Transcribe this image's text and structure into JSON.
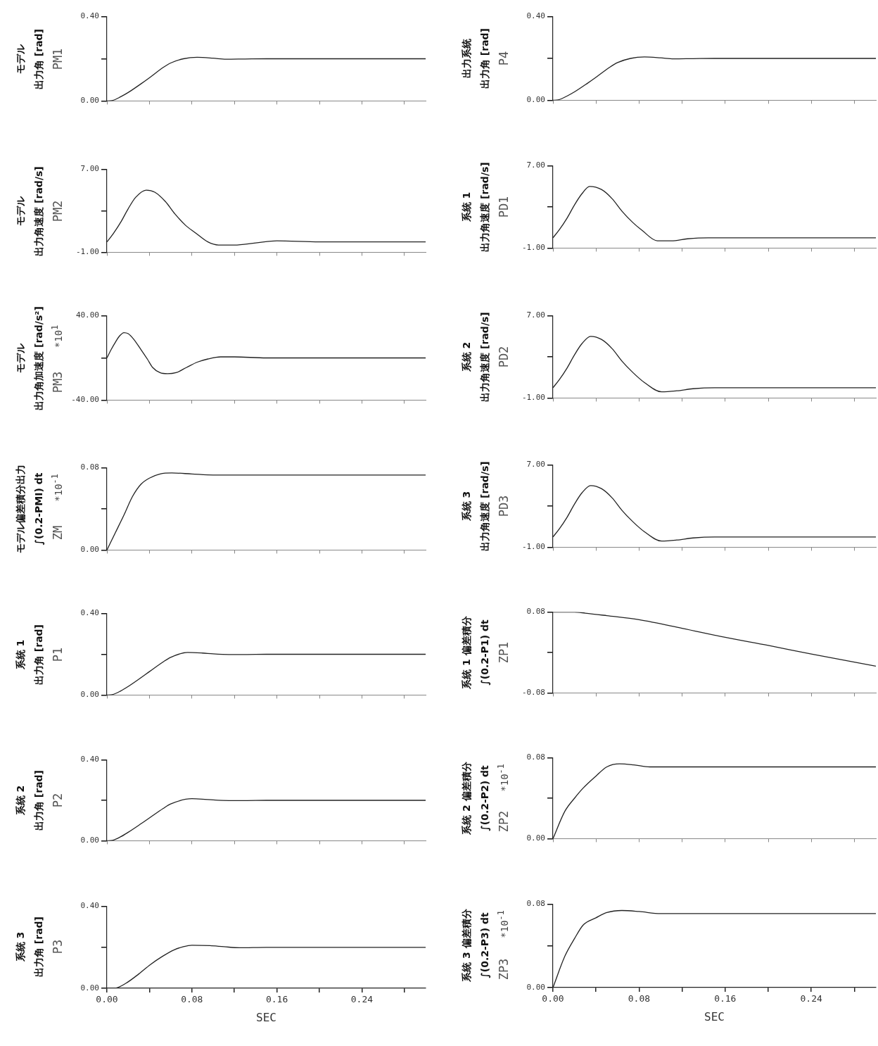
{
  "chart_data": [
    {
      "type": "line",
      "title": "モデル",
      "subtitle": "出力角 [rad]",
      "ylabel": "PM1",
      "color": "#222222",
      "marker": "none",
      "tick_labels": "y",
      "xlim": [
        0,
        0.3
      ],
      "xticks": [
        0,
        0.04,
        0.08,
        0.12,
        0.16,
        0.2,
        0.24,
        0.28
      ],
      "ylim": [
        0,
        0.4
      ],
      "yticks": [
        {
          "value": 0,
          "label": "0.00"
        },
        {
          "value": 0.2,
          "label": null
        },
        {
          "value": 0.4,
          "label": "0.40"
        }
      ],
      "x": [
        0,
        0.005,
        0.013,
        0.02,
        0.032,
        0.04,
        0.053,
        0.06,
        0.072,
        0.085,
        0.1,
        0.112,
        0.13,
        0.15,
        0.2,
        0.3
      ],
      "values": [
        0,
        0.002,
        0.02,
        0.04,
        0.081,
        0.11,
        0.159,
        0.18,
        0.2,
        0.207,
        0.203,
        0.198,
        0.199,
        0.2,
        0.2,
        0.2
      ]
    },
    {
      "type": "line",
      "title": "モデル",
      "subtitle": "出力角速度 [rad/s]",
      "ylabel": "PM2",
      "color": "#222222",
      "marker": "none",
      "tick_labels": "y",
      "xlim": [
        0,
        0.3
      ],
      "xticks": [
        0,
        0.04,
        0.08,
        0.12,
        0.16,
        0.2,
        0.24,
        0.28
      ],
      "ylim": [
        -1,
        7
      ],
      "yticks": [
        {
          "value": -1,
          "label": "-1.00"
        },
        {
          "value": 3,
          "label": null
        },
        {
          "value": 7,
          "label": "7.00"
        }
      ],
      "x": [
        0,
        0.006,
        0.013,
        0.02,
        0.027,
        0.037,
        0.045,
        0.055,
        0.064,
        0.074,
        0.083,
        0.095,
        0.105,
        0.12,
        0.14,
        0.16,
        0.2,
        0.3
      ],
      "values": [
        0,
        0.8,
        1.9,
        3.2,
        4.3,
        5.0,
        4.8,
        3.9,
        2.7,
        1.6,
        0.9,
        0.0,
        -0.3,
        -0.3,
        -0.1,
        0.1,
        0,
        0
      ]
    },
    {
      "type": "line",
      "title": "モデル",
      "subtitle": "出力角加速度 [rad/s²]",
      "ylabel": "PM3",
      "annotations": [
        "*10$^{1}$"
      ],
      "color": "#222222",
      "marker": "none",
      "tick_labels": "y",
      "xlim": [
        0,
        0.3
      ],
      "xticks": [
        0,
        0.04,
        0.08,
        0.12,
        0.16,
        0.2,
        0.24,
        0.28
      ],
      "ylim": [
        -40,
        40
      ],
      "yticks": [
        {
          "value": -40,
          "label": "-40.00"
        },
        {
          "value": 0,
          "label": null
        },
        {
          "value": 40,
          "label": "40.00"
        }
      ],
      "x": [
        0,
        0.004,
        0.008,
        0.012,
        0.016,
        0.02,
        0.025,
        0.032,
        0.038,
        0.043,
        0.05,
        0.057,
        0.065,
        0.075,
        0.085,
        0.095,
        0.107,
        0.12,
        0.15,
        0.2,
        0.3
      ],
      "values": [
        0,
        8,
        15,
        21,
        24,
        23,
        18,
        8,
        -1,
        -9,
        -14,
        -15,
        -14,
        -9,
        -4,
        -1,
        1,
        1,
        0,
        0,
        0
      ]
    },
    {
      "type": "line",
      "title": "モデル偏差積分出力",
      "subtitle": "∫(0.2-PMI) dt",
      "ylabel": "ZM",
      "annotations": [
        "*10$^{-1}$"
      ],
      "color": "#222222",
      "marker": "none",
      "tick_labels": "y",
      "xlim": [
        0,
        0.3
      ],
      "xticks": [
        0,
        0.04,
        0.08,
        0.12,
        0.16,
        0.2,
        0.24,
        0.28
      ],
      "ylim": [
        0,
        0.08
      ],
      "yticks": [
        {
          "value": 0,
          "label": "0.00"
        },
        {
          "value": 0.04,
          "label": null
        },
        {
          "value": 0.08,
          "label": "0.08"
        }
      ],
      "x": [
        0,
        0.008,
        0.016,
        0.024,
        0.032,
        0.04,
        0.05,
        0.061,
        0.08,
        0.1,
        0.15,
        0.3
      ],
      "values": [
        0,
        0.017,
        0.034,
        0.052,
        0.064,
        0.07,
        0.074,
        0.075,
        0.074,
        0.073,
        0.073,
        0.073
      ]
    },
    {
      "type": "line",
      "title": "系統 1",
      "subtitle": "出力角 [rad]",
      "ylabel": "P1",
      "color": "#222222",
      "marker": "none",
      "tick_labels": "y",
      "xlim": [
        0,
        0.3
      ],
      "xticks": [
        0,
        0.04,
        0.08,
        0.12,
        0.16,
        0.2,
        0.24,
        0.28
      ],
      "ylim": [
        0,
        0.4
      ],
      "yticks": [
        {
          "value": 0,
          "label": "0.00"
        },
        {
          "value": 0.2,
          "label": null
        },
        {
          "value": 0.4,
          "label": "0.40"
        }
      ],
      "x": [
        0,
        0.005,
        0.013,
        0.02,
        0.032,
        0.04,
        0.053,
        0.06,
        0.076,
        0.09,
        0.1,
        0.115,
        0.13,
        0.15,
        0.2,
        0.3
      ],
      "values": [
        0,
        0.002,
        0.02,
        0.042,
        0.085,
        0.115,
        0.163,
        0.185,
        0.209,
        0.206,
        0.202,
        0.199,
        0.199,
        0.2,
        0.2,
        0.2
      ]
    },
    {
      "type": "line",
      "title": "系統 2",
      "subtitle": "出力角 [rad]",
      "ylabel": "P2",
      "color": "#222222",
      "marker": "none",
      "tick_labels": "y",
      "xlim": [
        0,
        0.3
      ],
      "xticks": [
        0,
        0.04,
        0.08,
        0.12,
        0.16,
        0.2,
        0.24,
        0.28
      ],
      "ylim": [
        0,
        0.4
      ],
      "yticks": [
        {
          "value": 0,
          "label": "0.00"
        },
        {
          "value": 0.2,
          "label": null
        },
        {
          "value": 0.4,
          "label": "0.40"
        }
      ],
      "x": [
        0,
        0.005,
        0.013,
        0.02,
        0.032,
        0.04,
        0.053,
        0.06,
        0.08,
        0.09,
        0.1,
        0.115,
        0.13,
        0.15,
        0.2,
        0.3
      ],
      "values": [
        0,
        0.002,
        0.02,
        0.042,
        0.084,
        0.113,
        0.16,
        0.182,
        0.208,
        0.206,
        0.202,
        0.199,
        0.199,
        0.2,
        0.2,
        0.2
      ]
    },
    {
      "type": "line",
      "title": "系統 3",
      "subtitle": "出力角 [rad]",
      "ylabel": "P3",
      "xlabel": "SEC",
      "color": "#222222",
      "marker": "none",
      "xlim": [
        0,
        0.3
      ],
      "ylim": [
        0,
        0.4
      ],
      "yticks": [
        {
          "value": 0,
          "label": "0.00"
        },
        {
          "value": 0.2,
          "label": null
        },
        {
          "value": 0.4,
          "label": "0.40"
        }
      ],
      "xticks": [
        {
          "value": 0,
          "label": "0.00"
        },
        {
          "value": 0.04,
          "label": null
        },
        {
          "value": 0.08,
          "label": "0.08"
        },
        {
          "value": 0.12,
          "label": null
        },
        {
          "value": 0.16,
          "label": "0.16"
        },
        {
          "value": 0.2,
          "label": null
        },
        {
          "value": 0.24,
          "label": "0.24"
        },
        {
          "value": 0.28,
          "label": null
        }
      ],
      "x": [
        0,
        0.007,
        0.018,
        0.03,
        0.041,
        0.052,
        0.063,
        0.072,
        0.08,
        0.097,
        0.11,
        0.125,
        0.15,
        0.2,
        0.3
      ],
      "values": [
        0,
        0,
        0.025,
        0.07,
        0.116,
        0.155,
        0.187,
        0.203,
        0.21,
        0.208,
        0.203,
        0.198,
        0.2,
        0.2,
        0.2
      ]
    },
    {
      "type": "line",
      "title": "出力系統",
      "subtitle": "出力角 [rad]",
      "ylabel": "P4",
      "color": "#222222",
      "marker": "none",
      "tick_labels": "y",
      "xlim": [
        0,
        0.3
      ],
      "xticks": [
        0,
        0.04,
        0.08,
        0.12,
        0.16,
        0.2,
        0.24,
        0.28
      ],
      "ylim": [
        0,
        0.4
      ],
      "yticks": [
        {
          "value": 0,
          "label": "0.00"
        },
        {
          "value": 0.2,
          "label": null
        },
        {
          "value": 0.4,
          "label": "0.40"
        }
      ],
      "x": [
        0,
        0.005,
        0.013,
        0.02,
        0.032,
        0.04,
        0.053,
        0.06,
        0.072,
        0.085,
        0.1,
        0.112,
        0.13,
        0.15,
        0.2,
        0.3
      ],
      "values": [
        0,
        0.002,
        0.02,
        0.04,
        0.081,
        0.11,
        0.159,
        0.18,
        0.2,
        0.207,
        0.203,
        0.198,
        0.199,
        0.2,
        0.2,
        0.2
      ]
    },
    {
      "type": "line",
      "title": "系統 1",
      "subtitle": "出力角速度 [rad/s]",
      "ylabel": "PD1",
      "color": "#222222",
      "marker": "none",
      "tick_labels": "y",
      "xlim": [
        0,
        0.3
      ],
      "xticks": [
        0,
        0.04,
        0.08,
        0.12,
        0.16,
        0.2,
        0.24,
        0.28
      ],
      "ylim": [
        -1,
        7
      ],
      "yticks": [
        {
          "value": -1,
          "label": "-1.00"
        },
        {
          "value": 3,
          "label": null
        },
        {
          "value": 7,
          "label": "7.00"
        }
      ],
      "x": [
        0,
        0.006,
        0.013,
        0.02,
        0.027,
        0.034,
        0.045,
        0.055,
        0.064,
        0.074,
        0.083,
        0.097,
        0.11,
        0.125,
        0.144,
        0.2,
        0.3
      ],
      "values": [
        0,
        0.8,
        1.9,
        3.2,
        4.3,
        5.0,
        4.7,
        3.8,
        2.6,
        1.5,
        0.7,
        -0.3,
        -0.3,
        -0.1,
        0.0,
        0,
        0
      ]
    },
    {
      "type": "line",
      "title": "系統 2",
      "subtitle": "出力角速度 [rad/s]",
      "ylabel": "PD2",
      "color": "#222222",
      "marker": "none",
      "tick_labels": "y",
      "xlim": [
        0,
        0.3
      ],
      "xticks": [
        0,
        0.04,
        0.08,
        0.12,
        0.16,
        0.2,
        0.24,
        0.28
      ],
      "ylim": [
        -1,
        7
      ],
      "yticks": [
        {
          "value": -1,
          "label": "-1.00"
        },
        {
          "value": 3,
          "label": null
        },
        {
          "value": 7,
          "label": "7.00"
        }
      ],
      "x": [
        0,
        0.006,
        0.013,
        0.02,
        0.027,
        0.035,
        0.045,
        0.055,
        0.064,
        0.074,
        0.085,
        0.101,
        0.115,
        0.13,
        0.15,
        0.2,
        0.3
      ],
      "values": [
        0,
        0.8,
        1.9,
        3.2,
        4.3,
        5.0,
        4.7,
        3.8,
        2.6,
        1.5,
        0.5,
        -0.4,
        -0.3,
        -0.1,
        0.0,
        0,
        0
      ]
    },
    {
      "type": "line",
      "title": "系統 3",
      "subtitle": "出力角速度 [rad/s]",
      "ylabel": "PD3",
      "color": "#222222",
      "marker": "none",
      "tick_labels": "y",
      "xlim": [
        0,
        0.3
      ],
      "xticks": [
        0,
        0.04,
        0.08,
        0.12,
        0.16,
        0.2,
        0.24,
        0.28
      ],
      "ylim": [
        -1,
        7
      ],
      "yticks": [
        {
          "value": -1,
          "label": "-1.00"
        },
        {
          "value": 3,
          "label": null
        },
        {
          "value": 7,
          "label": "7.00"
        }
      ],
      "x": [
        0,
        0.006,
        0.013,
        0.02,
        0.027,
        0.035,
        0.045,
        0.055,
        0.064,
        0.074,
        0.085,
        0.101,
        0.115,
        0.13,
        0.15,
        0.2,
        0.3
      ],
      "values": [
        0,
        0.8,
        1.9,
        3.2,
        4.3,
        5.0,
        4.7,
        3.8,
        2.6,
        1.5,
        0.5,
        -0.4,
        -0.3,
        -0.1,
        0,
        0,
        0
      ]
    },
    {
      "type": "line",
      "title": "系統 1 偏差積分",
      "subtitle": "∫(0.2-P1) dt",
      "ylabel": "ZP1",
      "color": "#222222",
      "marker": "none",
      "tick_labels": "y",
      "xlim": [
        0,
        0.3
      ],
      "xticks": [
        0,
        0.04,
        0.08,
        0.12,
        0.16,
        0.2,
        0.24,
        0.28
      ],
      "ylim": [
        -0.08,
        0.08
      ],
      "yticks": [
        {
          "value": -0.08,
          "label": "-0.08"
        },
        {
          "value": 0,
          "label": null
        },
        {
          "value": 0.08,
          "label": "0.08"
        }
      ],
      "x": [
        0,
        0.02,
        0.03,
        0.05,
        0.08,
        0.12,
        0.16,
        0.2,
        0.24,
        0.3
      ],
      "values": [
        0.08,
        0.08,
        0.078,
        0.073,
        0.065,
        0.048,
        0.03,
        0.014,
        -0.003,
        -0.027
      ]
    },
    {
      "type": "line",
      "title": "系統 2 偏差積分",
      "subtitle": "∫(0.2-P2) dt",
      "ylabel": "ZP2",
      "annotations": [
        "*10$^{-1}$"
      ],
      "color": "#222222",
      "marker": "none",
      "tick_labels": "y",
      "xlim": [
        0,
        0.3
      ],
      "xticks": [
        0,
        0.04,
        0.08,
        0.12,
        0.16,
        0.2,
        0.24,
        0.28
      ],
      "ylim": [
        0,
        0.08
      ],
      "yticks": [
        {
          "value": 0,
          "label": "0.00"
        },
        {
          "value": 0.04,
          "label": null
        },
        {
          "value": 0.08,
          "label": "0.08"
        }
      ],
      "x": [
        0,
        0.011,
        0.02,
        0.028,
        0.04,
        0.05,
        0.062,
        0.075,
        0.09,
        0.11,
        0.15,
        0.3
      ],
      "values": [
        0,
        0.027,
        0.04,
        0.05,
        0.062,
        0.071,
        0.074,
        0.073,
        0.071,
        0.071,
        0.071,
        0.071
      ]
    },
    {
      "type": "line",
      "title": "系統 3 偏差積分",
      "subtitle": "∫(0.2-P3) dt",
      "ylabel": "ZP3",
      "xlabel": "SEC",
      "annotations": [
        "*10$^{-1}$"
      ],
      "color": "#222222",
      "marker": "none",
      "xlim": [
        0,
        0.3
      ],
      "ylim": [
        0,
        0.08
      ],
      "yticks": [
        {
          "value": 0,
          "label": "0.00"
        },
        {
          "value": 0.04,
          "label": null
        },
        {
          "value": 0.08,
          "label": "0.08"
        }
      ],
      "xticks": [
        {
          "value": 0,
          "label": "0.00"
        },
        {
          "value": 0.04,
          "label": null
        },
        {
          "value": 0.08,
          "label": "0.08"
        },
        {
          "value": 0.12,
          "label": null
        },
        {
          "value": 0.16,
          "label": "0.16"
        },
        {
          "value": 0.2,
          "label": null
        },
        {
          "value": 0.24,
          "label": "0.24"
        },
        {
          "value": 0.28,
          "label": null
        }
      ],
      "x": [
        0,
        0.011,
        0.02,
        0.028,
        0.04,
        0.05,
        0.064,
        0.08,
        0.1,
        0.15,
        0.3
      ],
      "values": [
        0,
        0.03,
        0.047,
        0.06,
        0.067,
        0.072,
        0.074,
        0.073,
        0.071,
        0.071,
        0.071
      ]
    }
  ]
}
